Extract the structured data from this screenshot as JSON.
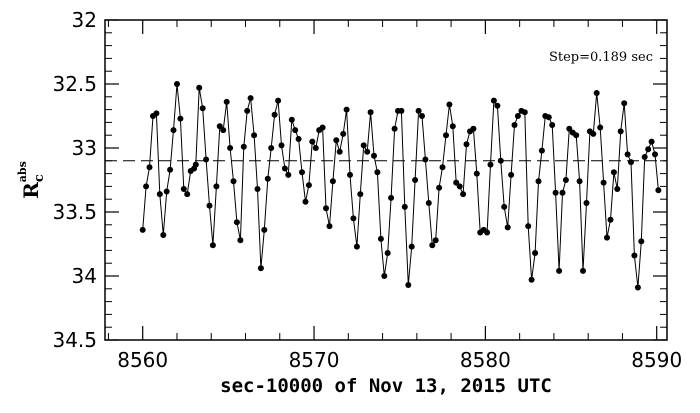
{
  "chart_data": {
    "type": "scatter",
    "title": "",
    "xlabel": "sec-10000 of Nov 13, 2015 UTC",
    "ylabel_main": "R",
    "ylabel_sub": "c",
    "ylabel_sup": "abs",
    "annotation": "Step=0.189 sec",
    "xlim": [
      8557.8,
      8590.6
    ],
    "ylim": [
      34.5,
      32
    ],
    "y_inverted": true,
    "xticks": [
      8560,
      8570,
      8580,
      8590
    ],
    "xtick_labels": [
      "8560",
      "8570",
      "8580",
      "8590"
    ],
    "yticks": [
      32,
      32.5,
      33,
      33.5,
      34,
      34.5
    ],
    "ytick_labels": [
      "32",
      "32.5",
      "33",
      "33.5",
      "34",
      "34.5"
    ],
    "reference_line": 33.1,
    "grid": false,
    "line_connected": true,
    "marker": "filled-circle",
    "series": [
      {
        "points": [
          [
            8560.0,
            33.64
          ],
          [
            8560.2,
            33.3
          ],
          [
            8560.4,
            33.15
          ],
          [
            8560.6,
            32.75
          ],
          [
            8560.8,
            32.73
          ],
          [
            8561.0,
            33.36
          ],
          [
            8561.2,
            33.68
          ],
          [
            8561.4,
            33.34
          ],
          [
            8561.6,
            33.17
          ],
          [
            8561.8,
            32.86
          ],
          [
            8562.0,
            32.5
          ],
          [
            8562.2,
            32.77
          ],
          [
            8562.4,
            33.32
          ],
          [
            8562.6,
            33.36
          ],
          [
            8562.8,
            33.18
          ],
          [
            8563.0,
            33.16
          ],
          [
            8563.1,
            33.13
          ],
          [
            8563.3,
            32.53
          ],
          [
            8563.5,
            32.69
          ],
          [
            8563.7,
            33.09
          ],
          [
            8563.9,
            33.45
          ],
          [
            8564.1,
            33.76
          ],
          [
            8564.3,
            33.3
          ],
          [
            8564.5,
            32.83
          ],
          [
            8564.7,
            32.86
          ],
          [
            8564.9,
            32.64
          ],
          [
            8565.1,
            33.0
          ],
          [
            8565.3,
            33.26
          ],
          [
            8565.5,
            33.58
          ],
          [
            8565.7,
            33.72
          ],
          [
            8565.9,
            32.99
          ],
          [
            8566.1,
            32.71
          ],
          [
            8566.3,
            32.61
          ],
          [
            8566.5,
            32.9
          ],
          [
            8566.7,
            33.32
          ],
          [
            8566.9,
            33.94
          ],
          [
            8567.1,
            33.64
          ],
          [
            8567.3,
            33.24
          ],
          [
            8567.5,
            33.0
          ],
          [
            8567.7,
            32.74
          ],
          [
            8567.9,
            32.63
          ],
          [
            8568.1,
            32.98
          ],
          [
            8568.3,
            33.16
          ],
          [
            8568.5,
            33.21
          ],
          [
            8568.7,
            32.78
          ],
          [
            8568.9,
            32.86
          ],
          [
            8569.1,
            32.93
          ],
          [
            8569.3,
            33.19
          ],
          [
            8569.5,
            33.42
          ],
          [
            8569.7,
            33.29
          ],
          [
            8569.9,
            32.95
          ],
          [
            8570.1,
            33.0
          ],
          [
            8570.3,
            32.86
          ],
          [
            8570.5,
            32.84
          ],
          [
            8570.7,
            33.47
          ],
          [
            8570.9,
            33.61
          ],
          [
            8571.1,
            33.26
          ],
          [
            8571.3,
            32.94
          ],
          [
            8571.5,
            33.03
          ],
          [
            8571.7,
            32.89
          ],
          [
            8571.9,
            32.7
          ],
          [
            8572.1,
            33.21
          ],
          [
            8572.3,
            33.55
          ],
          [
            8572.5,
            33.77
          ],
          [
            8572.7,
            33.36
          ],
          [
            8572.9,
            32.98
          ],
          [
            8573.1,
            33.03
          ],
          [
            8573.3,
            32.72
          ],
          [
            8573.5,
            33.06
          ],
          [
            8573.7,
            33.19
          ],
          [
            8573.9,
            33.71
          ],
          [
            8574.1,
            34.0
          ],
          [
            8574.3,
            33.82
          ],
          [
            8574.5,
            33.39
          ],
          [
            8574.7,
            32.85
          ],
          [
            8574.9,
            32.71
          ],
          [
            8575.1,
            32.71
          ],
          [
            8575.3,
            33.46
          ],
          [
            8575.5,
            34.07
          ],
          [
            8575.7,
            33.77
          ],
          [
            8575.9,
            33.25
          ],
          [
            8576.1,
            32.71
          ],
          [
            8576.3,
            32.75
          ],
          [
            8576.5,
            33.09
          ],
          [
            8576.7,
            33.43
          ],
          [
            8576.9,
            33.76
          ],
          [
            8577.1,
            33.72
          ],
          [
            8577.3,
            33.31
          ],
          [
            8577.5,
            33.15
          ],
          [
            8577.7,
            32.9
          ],
          [
            8577.9,
            32.66
          ],
          [
            8578.1,
            32.83
          ],
          [
            8578.3,
            33.27
          ],
          [
            8578.5,
            33.3
          ],
          [
            8578.7,
            33.36
          ],
          [
            8578.9,
            32.97
          ],
          [
            8579.1,
            32.87
          ],
          [
            8579.3,
            32.85
          ],
          [
            8579.5,
            33.2
          ],
          [
            8579.7,
            33.66
          ],
          [
            8579.9,
            33.64
          ],
          [
            8580.1,
            33.66
          ],
          [
            8580.3,
            33.13
          ],
          [
            8580.5,
            32.63
          ],
          [
            8580.7,
            32.67
          ],
          [
            8580.9,
            33.1
          ],
          [
            8581.1,
            33.46
          ],
          [
            8581.3,
            33.62
          ],
          [
            8581.5,
            33.21
          ],
          [
            8581.7,
            32.82
          ],
          [
            8581.9,
            32.75
          ],
          [
            8582.1,
            32.71
          ],
          [
            8582.3,
            32.72
          ],
          [
            8582.5,
            33.61
          ],
          [
            8582.7,
            34.03
          ],
          [
            8582.9,
            33.82
          ],
          [
            8583.1,
            33.26
          ],
          [
            8583.3,
            33.02
          ],
          [
            8583.5,
            32.75
          ],
          [
            8583.7,
            32.76
          ],
          [
            8583.9,
            32.82
          ],
          [
            8584.1,
            33.35
          ],
          [
            8584.3,
            33.96
          ],
          [
            8584.5,
            33.35
          ],
          [
            8584.7,
            33.25
          ],
          [
            8584.9,
            32.85
          ],
          [
            8585.1,
            32.88
          ],
          [
            8585.3,
            32.9
          ],
          [
            8585.5,
            33.26
          ],
          [
            8585.7,
            33.96
          ],
          [
            8585.9,
            33.43
          ],
          [
            8586.1,
            32.87
          ],
          [
            8586.3,
            32.89
          ],
          [
            8586.5,
            32.57
          ],
          [
            8586.7,
            32.84
          ],
          [
            8586.9,
            33.27
          ],
          [
            8587.1,
            33.7
          ],
          [
            8587.3,
            33.56
          ],
          [
            8587.5,
            33.19
          ],
          [
            8587.7,
            33.32
          ],
          [
            8587.9,
            32.87
          ],
          [
            8588.1,
            32.65
          ],
          [
            8588.3,
            33.05
          ],
          [
            8588.5,
            33.11
          ],
          [
            8588.7,
            33.84
          ],
          [
            8588.9,
            34.09
          ],
          [
            8589.1,
            33.73
          ],
          [
            8589.3,
            33.07
          ],
          [
            8589.5,
            33.01
          ],
          [
            8589.7,
            32.95
          ],
          [
            8589.9,
            33.05
          ],
          [
            8590.1,
            33.33
          ]
        ]
      }
    ]
  }
}
